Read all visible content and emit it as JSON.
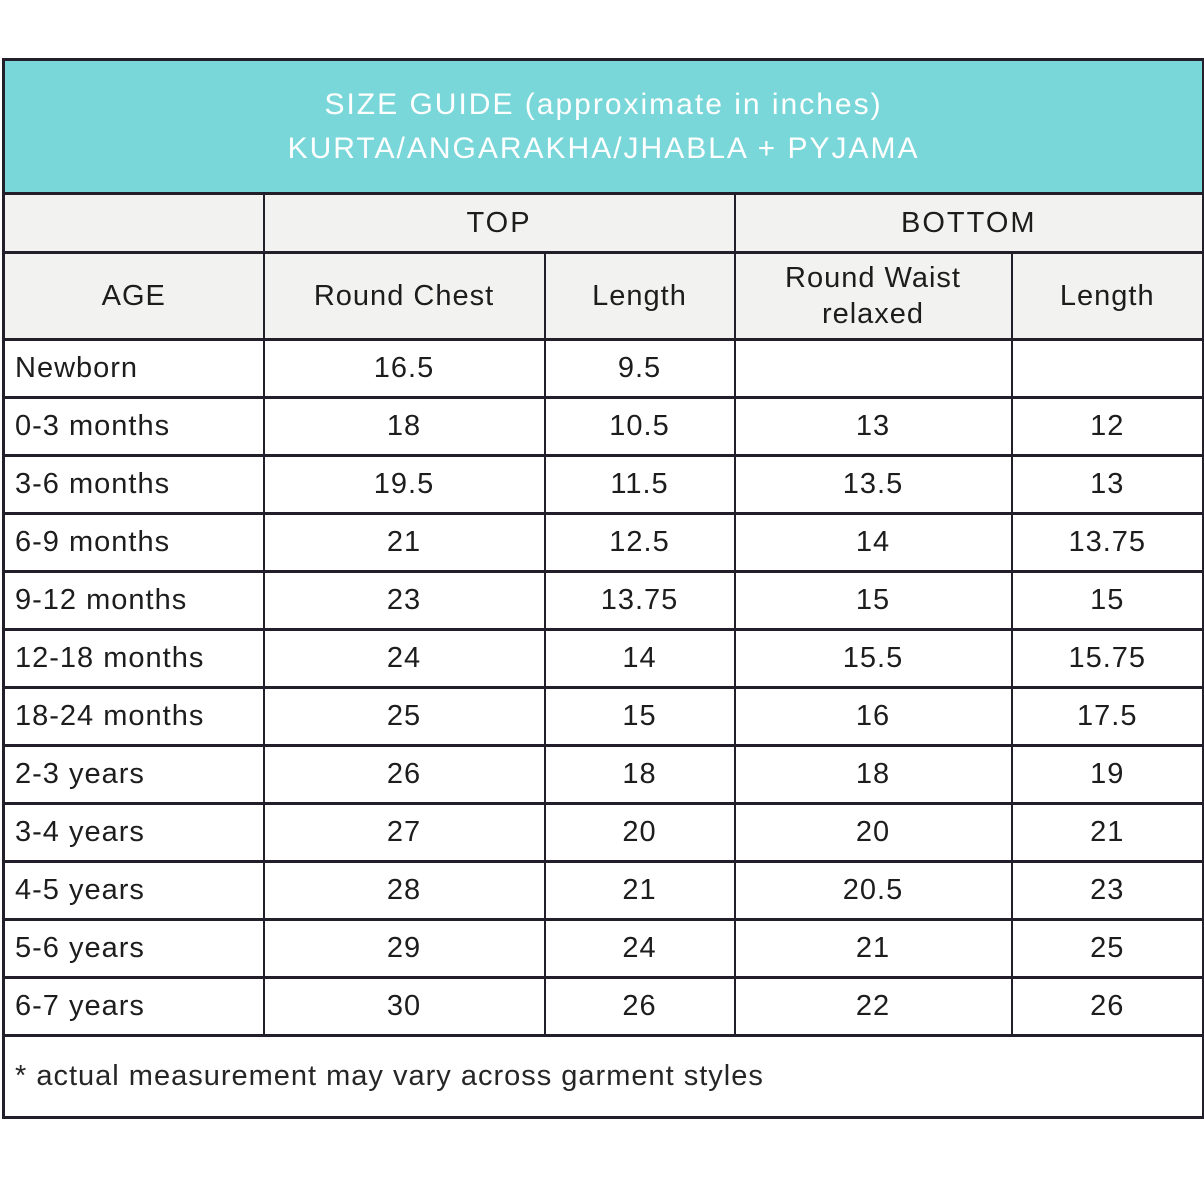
{
  "chart_data": {
    "type": "table",
    "title": "SIZE GUIDE (approximate in inches)",
    "subtitle": "KURTA/ANGARAKHA/JHABLA + PYJAMA",
    "column_groups": {
      "top": "TOP",
      "bottom": "BOTTOM"
    },
    "columns": {
      "age": "AGE",
      "round_chest": "Round Chest",
      "top_length": "Length",
      "round_waist": "Round Waist relaxed",
      "bottom_length": "Length"
    },
    "rows": [
      [
        "Newborn",
        "16.5",
        "9.5",
        "",
        ""
      ],
      [
        "0-3 months",
        "18",
        "10.5",
        "13",
        "12"
      ],
      [
        "3-6 months",
        "19.5",
        "11.5",
        "13.5",
        "13"
      ],
      [
        "6-9 months",
        "21",
        "12.5",
        "14",
        "13.75"
      ],
      [
        "9-12 months",
        "23",
        "13.75",
        "15",
        "15"
      ],
      [
        "12-18 months",
        "24",
        "14",
        "15.5",
        "15.75"
      ],
      [
        "18-24 months",
        "25",
        "15",
        "16",
        "17.5"
      ],
      [
        "2-3 years",
        "26",
        "18",
        "18",
        "19"
      ],
      [
        "3-4 years",
        "27",
        "20",
        "20",
        "21"
      ],
      [
        "4-5 years",
        "28",
        "21",
        "20.5",
        "23"
      ],
      [
        "5-6 years",
        "29",
        "24",
        "21",
        "25"
      ],
      [
        "6-7 years",
        "30",
        "26",
        "22",
        "26"
      ]
    ],
    "footnote": "* actual measurement may vary across garment styles"
  },
  "colors": {
    "title_band_teal": "#7AD7D9",
    "header_gray": "#F2F2F1",
    "border_dark": "#221F2B",
    "text_dark": "#1D1D1D",
    "title_text": "#FFFFFF",
    "row_white": "#FFFFFF"
  }
}
